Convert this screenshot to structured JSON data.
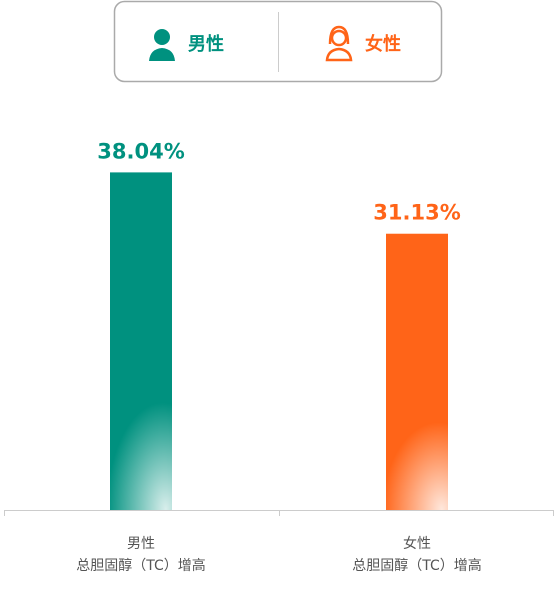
{
  "chart_data": {
    "type": "bar",
    "legend": [
      "男性",
      "女性"
    ],
    "categories": [
      [
        "男性",
        "总胆固醇（TC）增高"
      ],
      [
        "女性",
        "总胆固醇（TC）增高"
      ]
    ],
    "values": [
      38.04,
      31.13
    ],
    "value_labels": [
      "38.04%",
      "31.13%"
    ],
    "colors": [
      "#00917f",
      "#ff6418"
    ],
    "ylim": [
      0,
      40
    ]
  }
}
